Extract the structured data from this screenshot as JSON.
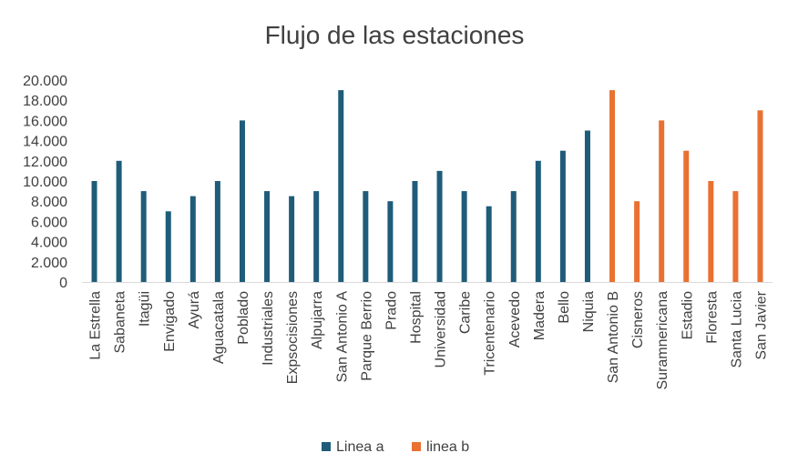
{
  "chart_data": {
    "type": "bar",
    "title": "Flujo de las estaciones",
    "xlabel": "",
    "ylabel": "",
    "ylim": [
      0,
      20000
    ],
    "y_ticks": [
      0,
      2000,
      4000,
      6000,
      8000,
      10000,
      12000,
      14000,
      16000,
      18000,
      20000
    ],
    "y_tick_labels": [
      "0",
      "2.000",
      "4.000",
      "6.000",
      "8.000",
      "10.000",
      "12.000",
      "14.000",
      "16.000",
      "18.000",
      "20.000"
    ],
    "grid": false,
    "legend_position": "bottom",
    "categories": [
      "La Estrella",
      "Sabaneta",
      "Itagüi",
      "Envigado",
      "Ayurá",
      "Aguacatala",
      "Poblado",
      "Industriales",
      "Expsocisiones",
      "Alpujarra",
      "San Antonio A",
      "Parque Berrio",
      "Prado",
      "Hospital",
      "Universidad",
      "Caribe",
      "Tricentenario",
      "Acevedo",
      "Madera",
      "Bello",
      "Niquia",
      "San Antonio B",
      "Cisneros",
      "Suramnericana",
      "Estadio",
      "Floresta",
      "Santa Lucia",
      "San Javier"
    ],
    "series": [
      {
        "name": "Linea a",
        "color": "#1f5c7a",
        "values": [
          10000,
          12000,
          9000,
          7000,
          8500,
          10000,
          16000,
          9000,
          8500,
          9000,
          19000,
          9000,
          8000,
          10000,
          11000,
          9000,
          7500,
          9000,
          12000,
          13000,
          15000,
          null,
          null,
          null,
          null,
          null,
          null,
          null
        ]
      },
      {
        "name": "linea b",
        "color": "#e97132",
        "values": [
          null,
          null,
          null,
          null,
          null,
          null,
          null,
          null,
          null,
          null,
          null,
          null,
          null,
          null,
          null,
          null,
          null,
          null,
          null,
          null,
          null,
          19000,
          8000,
          16000,
          13000,
          10000,
          9000,
          17000
        ]
      }
    ]
  }
}
